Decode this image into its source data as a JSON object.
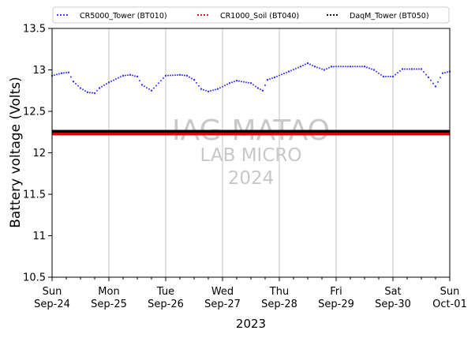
{
  "chart_data": {
    "type": "scatter",
    "xlabel": "2023",
    "ylabel": "Battery voltage (Volts)",
    "xlim": [
      "2023-09-24",
      "2023-10-01"
    ],
    "ylim": [
      10.5,
      13.5
    ],
    "yticks": [
      10.5,
      11.0,
      11.5,
      12.0,
      12.5,
      13.0,
      13.5
    ],
    "ytick_labels": [
      "10.5",
      "11.0",
      "11.5",
      "12.0",
      "12.5",
      "13.0",
      "13.5"
    ],
    "xticks": [
      {
        "date": "2023-09-24",
        "day": "Sun",
        "label": "Sep-24"
      },
      {
        "date": "2023-09-25",
        "day": "Mon",
        "label": "Sep-25"
      },
      {
        "date": "2023-09-26",
        "day": "Tue",
        "label": "Sep-26"
      },
      {
        "date": "2023-09-27",
        "day": "Wed",
        "label": "Sep-27"
      },
      {
        "date": "2023-09-28",
        "day": "Thu",
        "label": "Sep-28"
      },
      {
        "date": "2023-09-29",
        "day": "Fri",
        "label": "Sep-29"
      },
      {
        "date": "2023-09-30",
        "day": "Sat",
        "label": "Sep-30"
      },
      {
        "date": "2023-10-01",
        "day": "Sun",
        "label": "Oct-01"
      }
    ],
    "grid": "x-major",
    "legend_placement": "top",
    "watermark": {
      "line1": "IAG-MATAO",
      "line2": "LAB MICRO",
      "line3": "2024"
    },
    "series": [
      {
        "name": "CR5000_Tower (BT010)",
        "color": "#3333ff",
        "x": [
          "2023-09-24 00:00",
          "2023-09-24 04:00",
          "2023-09-24 07:00",
          "2023-09-24 09:00",
          "2023-09-24 12:00",
          "2023-09-24 15:00",
          "2023-09-24 18:00",
          "2023-09-24 20:00",
          "2023-09-25 00:00",
          "2023-09-25 06:00",
          "2023-09-25 09:00",
          "2023-09-25 12:00",
          "2023-09-25 14:00",
          "2023-09-25 18:00",
          "2023-09-26 00:00",
          "2023-09-26 06:00",
          "2023-09-26 09:00",
          "2023-09-26 12:00",
          "2023-09-26 15:00",
          "2023-09-26 18:00",
          "2023-09-26 22:00",
          "2023-09-27 03:00",
          "2023-09-27 06:00",
          "2023-09-27 12:00",
          "2023-09-27 15:00",
          "2023-09-27 17:00",
          "2023-09-27 19:00",
          "2023-09-27 22:00",
          "2023-09-28 04:00",
          "2023-09-28 09:00",
          "2023-09-28 12:00",
          "2023-09-28 15:00",
          "2023-09-28 19:00",
          "2023-09-28 22:00",
          "2023-09-29 06:00",
          "2023-09-29 12:00",
          "2023-09-29 16:00",
          "2023-09-29 20:00",
          "2023-09-30 00:00",
          "2023-09-30 04:00",
          "2023-09-30 08:00",
          "2023-09-30 12:00",
          "2023-09-30 15:00",
          "2023-09-30 18:00",
          "2023-09-30 21:00",
          "2023-10-01 00:00"
        ],
        "y": [
          12.93,
          12.96,
          12.97,
          12.86,
          12.78,
          12.73,
          12.72,
          12.78,
          12.85,
          12.93,
          12.94,
          12.92,
          12.82,
          12.75,
          12.93,
          12.94,
          12.93,
          12.88,
          12.77,
          12.74,
          12.77,
          12.84,
          12.87,
          12.84,
          12.78,
          12.75,
          12.88,
          12.91,
          12.98,
          13.04,
          13.08,
          13.04,
          13.0,
          13.04,
          13.04,
          13.04,
          13.0,
          12.92,
          12.92,
          13.01,
          13.01,
          13.01,
          12.91,
          12.8,
          12.96,
          12.98
        ]
      },
      {
        "name": "CR1000_Soil (BT040)",
        "color": "#dd0000",
        "x": [
          "2023-09-24 00:00",
          "2023-10-01 00:00"
        ],
        "y": [
          12.23,
          12.23
        ]
      },
      {
        "name": "DaqM_Tower (BT050)",
        "color": "#000000",
        "x": [
          "2023-09-24 00:00",
          "2023-10-01 00:00"
        ],
        "y": [
          12.26,
          12.26
        ]
      }
    ]
  }
}
